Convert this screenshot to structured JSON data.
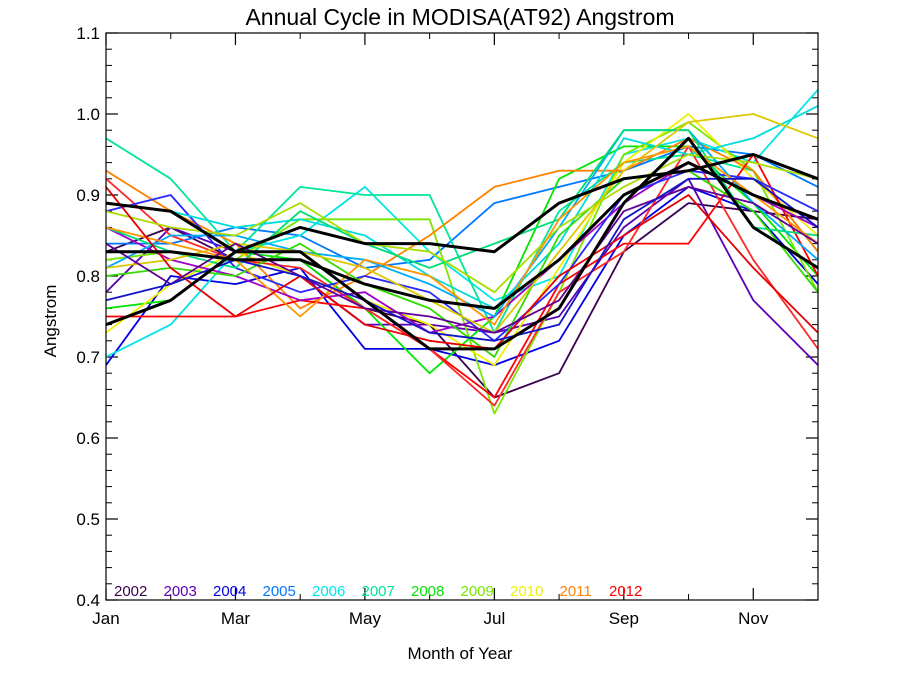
{
  "chart_data": {
    "type": "line",
    "title": "Annual Cycle in MODISA(AT92) Angstrom",
    "xlabel": "Month of Year",
    "ylabel": "Angstrom",
    "xlim": [
      1,
      12
    ],
    "ylim": [
      0.4,
      1.1
    ],
    "x_ticks": [
      1,
      3,
      5,
      7,
      9,
      11
    ],
    "x_tick_labels": [
      "Jan",
      "Mar",
      "May",
      "Jul",
      "Sep",
      "Nov"
    ],
    "y_ticks": [
      0.4,
      0.5,
      0.6,
      0.7,
      0.8,
      0.9,
      1.0,
      1.1
    ],
    "y_tick_labels": [
      "0.4",
      "0.5",
      "0.6",
      "0.7",
      "0.8",
      "0.9",
      "1.0",
      "1.1"
    ],
    "x": [
      1,
      2,
      3,
      4,
      5,
      6,
      7,
      8,
      9,
      10,
      11,
      12
    ],
    "legend_position": "bottom-left inside plot",
    "series": [
      {
        "name": "2002",
        "color": "#3c0050",
        "values": [
          0.83,
          0.86,
          0.82,
          0.82,
          0.76,
          0.74,
          0.65,
          0.68,
          0.83,
          0.89,
          0.88,
          0.87
        ]
      },
      {
        "name": "2003",
        "color": "#5a00b4",
        "values": [
          0.78,
          0.86,
          0.83,
          0.8,
          0.74,
          0.74,
          0.73,
          0.75,
          0.86,
          0.92,
          0.77,
          0.69
        ]
      },
      {
        "name": "2004",
        "color": "#0000e6",
        "values": [
          0.69,
          0.8,
          0.79,
          0.81,
          0.71,
          0.71,
          0.69,
          0.72,
          0.85,
          0.91,
          0.88,
          0.79
        ]
      },
      {
        "name": "2005",
        "color": "#0078ff",
        "values": [
          0.84,
          0.84,
          0.86,
          0.85,
          0.81,
          0.82,
          0.89,
          0.91,
          0.93,
          0.96,
          0.95,
          0.91
        ]
      },
      {
        "name": "2006",
        "color": "#00e6e6",
        "values": [
          0.7,
          0.74,
          0.83,
          0.85,
          0.91,
          0.83,
          0.77,
          0.8,
          0.95,
          0.97,
          0.94,
          1.03
        ]
      },
      {
        "name": "2007",
        "color": "#00e696",
        "values": [
          0.97,
          0.92,
          0.83,
          0.91,
          0.9,
          0.9,
          0.73,
          0.88,
          0.94,
          0.95,
          0.93,
          0.83
        ]
      },
      {
        "name": "2008",
        "color": "#00e600",
        "values": [
          0.76,
          0.77,
          0.83,
          0.82,
          0.76,
          0.68,
          0.75,
          0.92,
          0.96,
          0.96,
          0.89,
          0.8
        ]
      },
      {
        "name": "2009",
        "color": "#78e600",
        "values": [
          0.82,
          0.83,
          0.82,
          0.87,
          0.87,
          0.87,
          0.63,
          0.78,
          0.95,
          0.99,
          0.93,
          0.78
        ]
      },
      {
        "name": "2010",
        "color": "#f0f000",
        "values": [
          0.73,
          0.79,
          0.83,
          0.8,
          0.77,
          0.74,
          0.69,
          0.81,
          0.94,
          1.0,
          0.92,
          0.85
        ]
      },
      {
        "name": "2011",
        "color": "#ff8200",
        "values": [
          0.93,
          0.88,
          0.84,
          0.76,
          0.8,
          0.85,
          0.91,
          0.93,
          0.93,
          0.97,
          0.93,
          0.83
        ]
      },
      {
        "name": "2012",
        "color": "#ff0000",
        "values": [
          0.75,
          0.75,
          0.75,
          0.77,
          0.76,
          0.71,
          0.65,
          0.79,
          0.84,
          0.84,
          0.95,
          0.8
        ]
      },
      {
        "color": "#ff2828",
        "values": [
          0.92,
          0.85,
          0.82,
          0.81,
          0.76,
          0.71,
          0.64,
          0.78,
          0.83,
          0.96,
          0.82,
          0.71
        ]
      },
      {
        "color": "#a000c8",
        "values": [
          0.86,
          0.82,
          0.8,
          0.77,
          0.78,
          0.73,
          0.75,
          0.82,
          0.89,
          0.94,
          0.9,
          0.86
        ]
      },
      {
        "color": "#2828ff",
        "values": [
          0.88,
          0.9,
          0.81,
          0.78,
          0.8,
          0.78,
          0.72,
          0.79,
          0.9,
          0.93,
          0.92,
          0.88
        ]
      },
      {
        "color": "#00aaff",
        "values": [
          0.81,
          0.85,
          0.85,
          0.83,
          0.82,
          0.79,
          0.75,
          0.86,
          0.98,
          0.98,
          0.89,
          0.82
        ]
      },
      {
        "color": "#00dcdc",
        "values": [
          0.89,
          0.88,
          0.86,
          0.87,
          0.85,
          0.8,
          0.76,
          0.84,
          0.97,
          0.95,
          0.97,
          1.01
        ]
      },
      {
        "color": "#00dc78",
        "values": [
          0.86,
          0.83,
          0.81,
          0.88,
          0.84,
          0.81,
          0.84,
          0.87,
          0.98,
          0.98,
          0.86,
          0.85
        ]
      },
      {
        "color": "#32dc00",
        "values": [
          0.8,
          0.81,
          0.8,
          0.84,
          0.79,
          0.76,
          0.7,
          0.85,
          0.92,
          0.93,
          0.88,
          0.78
        ]
      },
      {
        "color": "#aadc00",
        "values": [
          0.88,
          0.86,
          0.85,
          0.89,
          0.84,
          0.83,
          0.78,
          0.86,
          0.91,
          0.95,
          0.94,
          0.92
        ]
      },
      {
        "color": "#dcc800",
        "values": [
          0.81,
          0.82,
          0.84,
          0.83,
          0.81,
          0.77,
          0.73,
          0.83,
          0.93,
          0.99,
          1.0,
          0.97
        ]
      },
      {
        "color": "#ff9600",
        "values": [
          0.86,
          0.84,
          0.82,
          0.75,
          0.82,
          0.8,
          0.74,
          0.87,
          0.94,
          0.96,
          0.9,
          0.84
        ]
      },
      {
        "color": "#e60000",
        "values": [
          0.91,
          0.81,
          0.75,
          0.8,
          0.74,
          0.72,
          0.71,
          0.8,
          0.85,
          0.9,
          0.81,
          0.73
        ]
      },
      {
        "color": "#640096",
        "values": [
          0.84,
          0.79,
          0.84,
          0.8,
          0.76,
          0.75,
          0.73,
          0.77,
          0.88,
          0.91,
          0.89,
          0.84
        ]
      },
      {
        "color": "#1414c8",
        "values": [
          0.77,
          0.79,
          0.82,
          0.8,
          0.77,
          0.73,
          0.72,
          0.74,
          0.87,
          0.92,
          0.92,
          0.86
        ]
      },
      {
        "color": "#000000",
        "width": 3,
        "values": [
          0.83,
          0.83,
          0.82,
          0.82,
          0.79,
          0.77,
          0.76,
          0.82,
          0.9,
          0.94,
          0.9,
          0.87
        ]
      },
      {
        "color": "#000000",
        "width": 3,
        "values": [
          0.89,
          0.88,
          0.83,
          0.86,
          0.84,
          0.84,
          0.83,
          0.89,
          0.92,
          0.93,
          0.95,
          0.92
        ]
      },
      {
        "color": "#000000",
        "width": 3,
        "values": [
          0.74,
          0.77,
          0.83,
          0.83,
          0.77,
          0.71,
          0.71,
          0.76,
          0.89,
          0.97,
          0.86,
          0.81
        ]
      }
    ]
  }
}
